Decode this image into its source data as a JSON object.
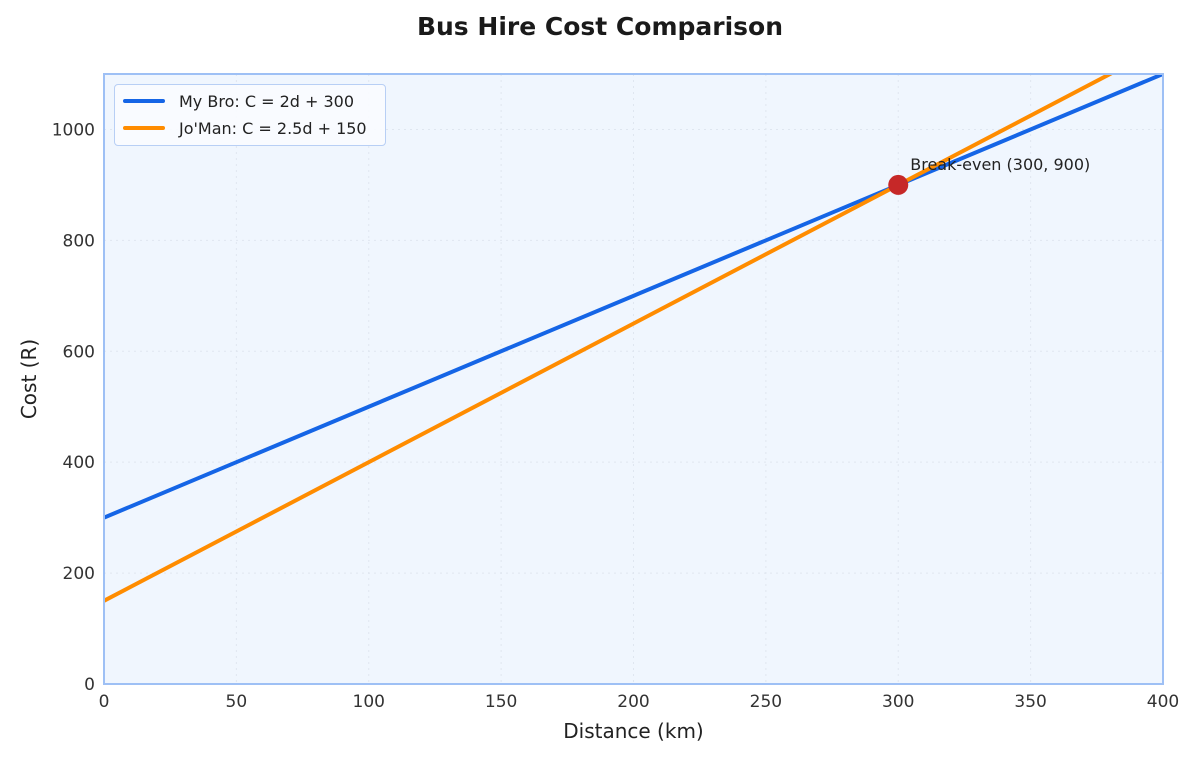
{
  "chart_data": {
    "type": "line",
    "title": "Bus Hire Cost Comparison",
    "xlabel": "Distance (km)",
    "ylabel": "Cost (R)",
    "xlim": [
      0,
      400
    ],
    "ylim": [
      0,
      1100
    ],
    "x_ticks": [
      0,
      50,
      100,
      150,
      200,
      250,
      300,
      350,
      400
    ],
    "y_ticks": [
      0,
      200,
      400,
      600,
      800,
      1000
    ],
    "grid": true,
    "legend_position": "upper left",
    "series": [
      {
        "name": "My Bro: C = 2d + 300",
        "color": "#1565e6",
        "slope": 2,
        "intercept": 300,
        "x": [
          0,
          400
        ],
        "y": [
          300,
          1100
        ]
      },
      {
        "name": "Jo'Man: C = 2.5d + 150",
        "color": "#ff8c00",
        "slope": 2.5,
        "intercept": 150,
        "x": [
          0,
          380
        ],
        "y": [
          150,
          1100
        ]
      }
    ],
    "annotations": [
      {
        "text": "Break-even (300, 900)",
        "x": 300,
        "y": 900,
        "marker_color": "#c62828"
      }
    ]
  },
  "legend": {
    "items": [
      {
        "label": "My Bro: C = 2d + 300",
        "color": "#1565e6"
      },
      {
        "label": "Jo'Man: C = 2.5d + 150",
        "color": "#ff8c00"
      }
    ]
  },
  "colors": {
    "plot_bg": "#f0f6fe",
    "axis": "#9ec0f5"
  }
}
